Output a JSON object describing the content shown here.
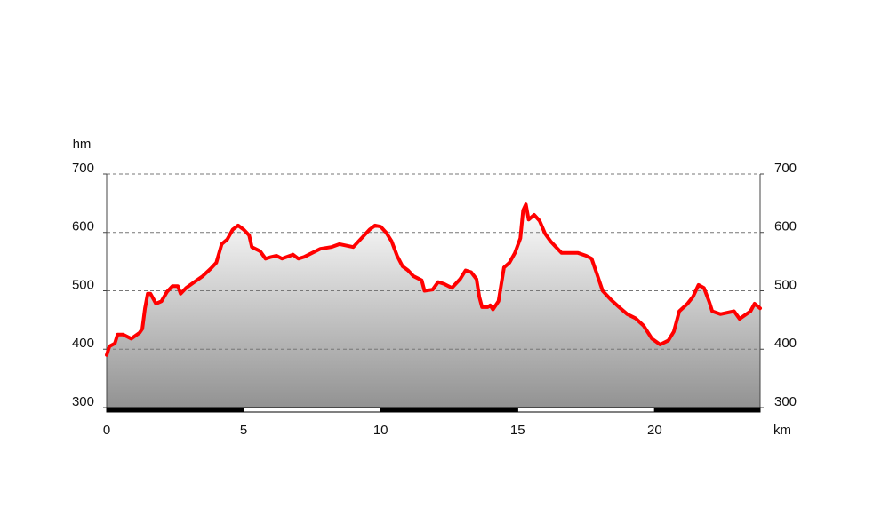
{
  "chart_data": {
    "type": "area",
    "x_label": "km",
    "y_label": "hm",
    "x": [
      0,
      0.1,
      0.3,
      0.4,
      0.6,
      0.9,
      1.2,
      1.3,
      1.4,
      1.5,
      1.6,
      1.8,
      2.0,
      2.2,
      2.4,
      2.6,
      2.7,
      2.9,
      3.2,
      3.5,
      3.8,
      4.0,
      4.2,
      4.4,
      4.6,
      4.8,
      5.0,
      5.2,
      5.3,
      5.6,
      5.8,
      6.0,
      6.2,
      6.4,
      6.8,
      7.0,
      7.2,
      7.5,
      7.8,
      8.2,
      8.5,
      9.0,
      9.3,
      9.6,
      9.8,
      10.0,
      10.2,
      10.4,
      10.6,
      10.8,
      11.0,
      11.2,
      11.5,
      11.6,
      11.9,
      12.1,
      12.3,
      12.6,
      12.9,
      13.1,
      13.3,
      13.5,
      13.6,
      13.7,
      13.9,
      14.0,
      14.1,
      14.3,
      14.5,
      14.7,
      14.9,
      15.1,
      15.2,
      15.3,
      15.4,
      15.6,
      15.8,
      16.0,
      16.2,
      16.4,
      16.6,
      16.8,
      17.2,
      17.5,
      17.7,
      17.9,
      18.1,
      18.4,
      18.7,
      19.0,
      19.3,
      19.6,
      19.9,
      20.2,
      20.5,
      20.7,
      20.9,
      21.2,
      21.4,
      21.6,
      21.8,
      22.0,
      22.1,
      22.4,
      22.9,
      23.1,
      23.5,
      23.65,
      23.85
    ],
    "values": [
      390,
      405,
      410,
      425,
      425,
      418,
      428,
      435,
      470,
      495,
      495,
      478,
      482,
      498,
      508,
      508,
      495,
      505,
      515,
      525,
      538,
      548,
      580,
      588,
      605,
      612,
      605,
      595,
      575,
      568,
      555,
      558,
      560,
      555,
      562,
      555,
      558,
      565,
      572,
      575,
      580,
      575,
      590,
      605,
      612,
      610,
      600,
      585,
      560,
      542,
      535,
      525,
      518,
      500,
      502,
      515,
      512,
      505,
      520,
      535,
      532,
      520,
      490,
      472,
      472,
      475,
      468,
      482,
      540,
      548,
      565,
      590,
      638,
      648,
      622,
      630,
      620,
      598,
      585,
      575,
      565,
      565,
      565,
      560,
      555,
      528,
      500,
      485,
      472,
      460,
      453,
      440,
      418,
      408,
      415,
      430,
      465,
      478,
      490,
      510,
      505,
      480,
      465,
      460,
      465,
      452,
      465,
      478,
      470
    ],
    "color": "#ff0000",
    "xlim": [
      0,
      23.85
    ],
    "xticks": [
      0,
      5,
      10,
      15,
      20
    ],
    "ylim": [
      300,
      700
    ],
    "yticks": [
      300,
      400,
      500,
      600,
      700
    ],
    "y2lim": [
      300,
      700
    ],
    "y2ticks": [
      300,
      400,
      500,
      600,
      700
    ],
    "grid": true
  }
}
